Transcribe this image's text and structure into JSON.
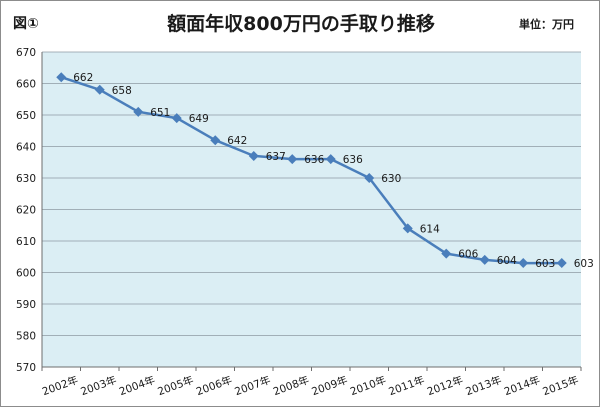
{
  "figure_label": "図①",
  "chart_data": {
    "type": "line",
    "title": "額面年収800万円の手取り推移",
    "unit_label": "単位：万円",
    "xlabel": "",
    "ylabel": "",
    "ylim": [
      570,
      670
    ],
    "yticks": [
      570,
      580,
      590,
      600,
      610,
      620,
      630,
      640,
      650,
      660,
      670
    ],
    "grid": true,
    "legend": "none",
    "categories": [
      "2002年",
      "2003年",
      "2004年",
      "2005年",
      "2006年",
      "2007年",
      "2008年",
      "2009年",
      "2010年",
      "2011年",
      "2012年",
      "2013年",
      "2014年",
      "2015年"
    ],
    "series": [
      {
        "values": [
          662,
          658,
          651,
          649,
          642,
          637,
          636,
          636,
          630,
          614,
          606,
          604,
          603,
          603
        ],
        "color": "#4a7ebb"
      }
    ],
    "plot_background": "#dbeef4"
  }
}
